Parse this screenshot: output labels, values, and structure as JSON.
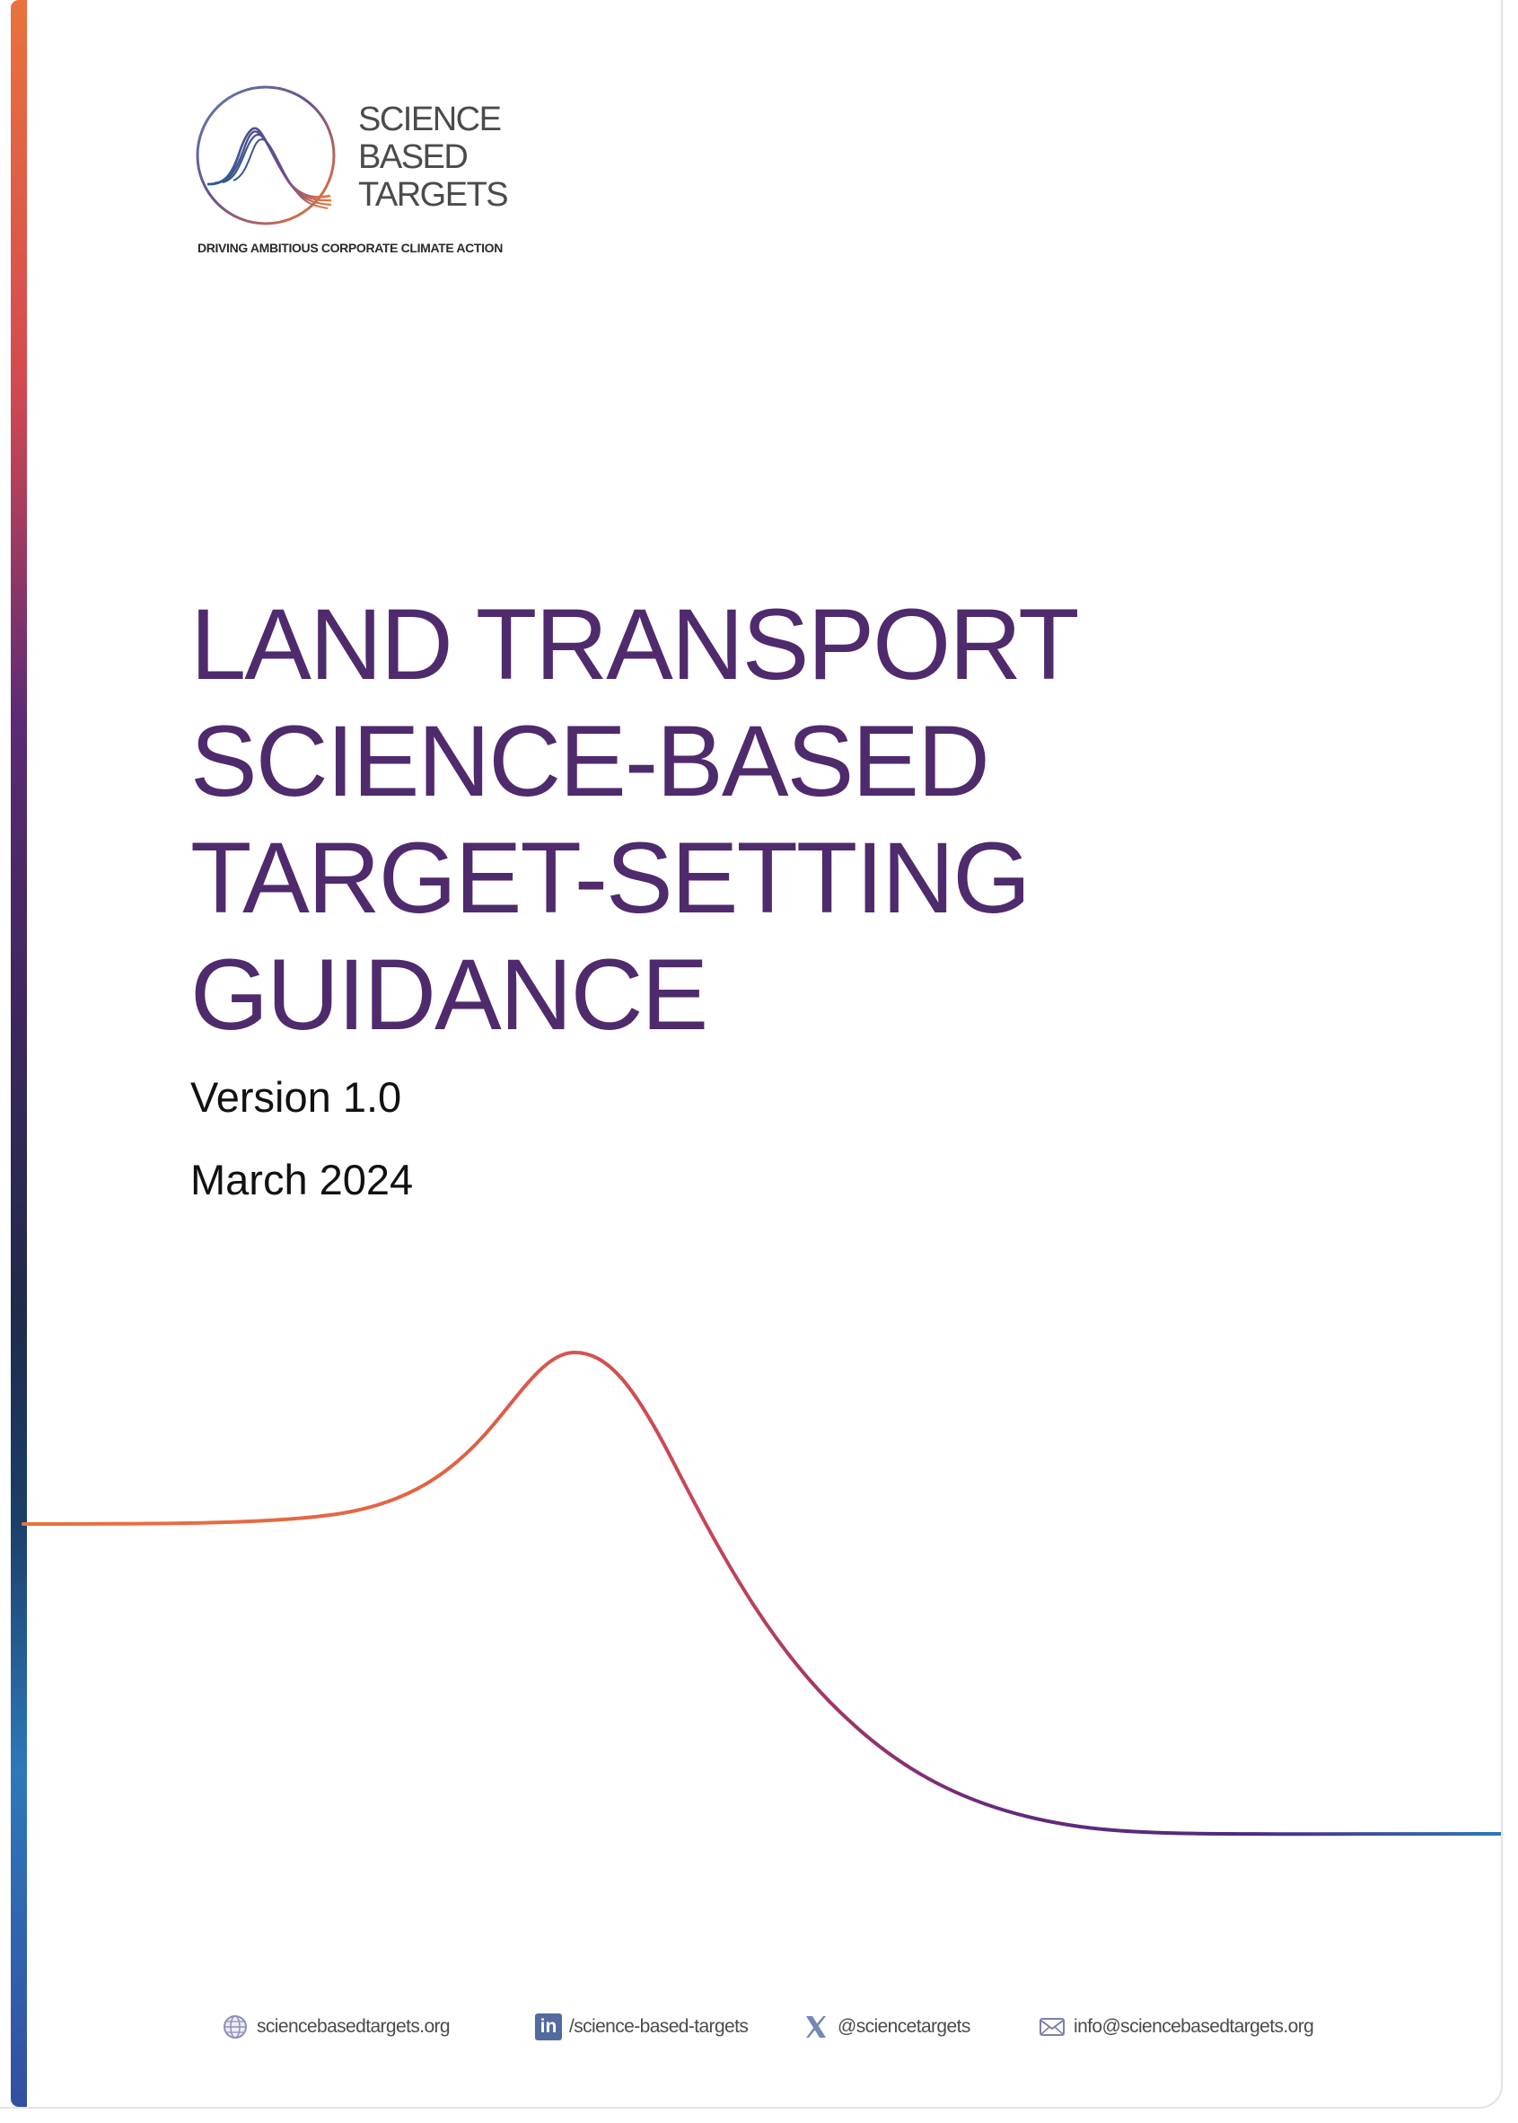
{
  "logo": {
    "line1": "SCIENCE",
    "line2": "BASED",
    "line3": "TARGETS",
    "tagline": "DRIVING AMBITIOUS CORPORATE CLIMATE ACTION"
  },
  "document": {
    "title_lines": [
      "LAND TRANSPORT",
      "SCIENCE-BASED",
      "TARGET-SETTING",
      "GUIDANCE"
    ],
    "version": "Version 1.0",
    "date": "March 2024"
  },
  "footer": {
    "website": "sciencebasedtargets.org",
    "linkedin": "/science-based-targets",
    "x_handle": "@sciencetargets",
    "email": "info@sciencebasedtargets.org"
  },
  "colors": {
    "title_purple": "#4f2a6c",
    "curve_orange": "#e9723d",
    "curve_red": "#d44a51",
    "curve_purple": "#5c2a74",
    "curve_blue": "#2e78b8"
  },
  "icons": {
    "website": "globe-icon",
    "linkedin": "linkedin-icon",
    "x": "x-icon",
    "email": "mail-icon"
  }
}
